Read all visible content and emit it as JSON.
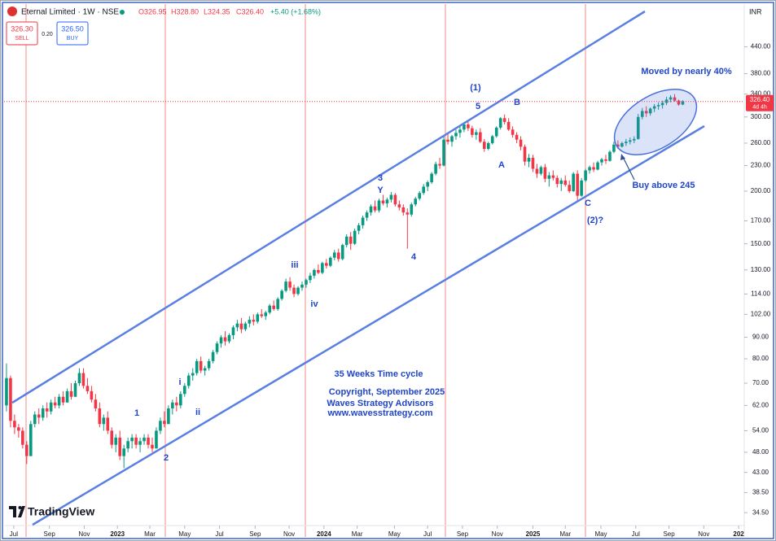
{
  "header": {
    "symbol": "Eternal Limited · 1W · NSE",
    "open": "O326.95",
    "high": "H328.80",
    "low": "L324.35",
    "close": "C326.40",
    "change": "+5.40 (+1.68%)",
    "currency": "INR"
  },
  "trade": {
    "sell_price": "326.30",
    "sell_label": "SELL",
    "spread": "0.20",
    "buy_price": "326.50",
    "buy_label": "BUY"
  },
  "branding": "TradingView",
  "chart_data": {
    "type": "candlestick",
    "log_scale": true,
    "grid": false,
    "up_color": "#089981",
    "down_color": "#f23645",
    "xlim": [
      -1.6,
      184.4
    ],
    "ylim": [
      32.3,
      556
    ],
    "xticks": [
      {
        "value": 1.8,
        "label": "Jul"
      },
      {
        "value": 10.6,
        "label": "Sep"
      },
      {
        "value": 19.2,
        "label": "Nov"
      },
      {
        "value": 27.4,
        "label": "2023"
      },
      {
        "value": 35.4,
        "label": "Mar"
      },
      {
        "value": 44,
        "label": "May"
      },
      {
        "value": 52.6,
        "label": "Jul"
      },
      {
        "value": 61.4,
        "label": "Sep"
      },
      {
        "value": 69.8,
        "label": "Nov"
      },
      {
        "value": 78.4,
        "label": "2024"
      },
      {
        "value": 86.6,
        "label": "Mar"
      },
      {
        "value": 95.8,
        "label": "May"
      },
      {
        "value": 104,
        "label": "Jul"
      },
      {
        "value": 112.6,
        "label": "Sep"
      },
      {
        "value": 121.2,
        "label": "Nov"
      },
      {
        "value": 130,
        "label": "2025"
      },
      {
        "value": 138,
        "label": "Mar"
      },
      {
        "value": 146.8,
        "label": "May"
      },
      {
        "value": 155.4,
        "label": "Jul"
      },
      {
        "value": 163.6,
        "label": "Sep"
      },
      {
        "value": 172.2,
        "label": "Nov"
      },
      {
        "value": 180.8,
        "label": "202"
      }
    ],
    "yticks": [
      {
        "value": 34.5,
        "label": "34.50"
      },
      {
        "value": 38.5,
        "label": "38.50"
      },
      {
        "value": 43,
        "label": "43.00"
      },
      {
        "value": 48,
        "label": "48.00"
      },
      {
        "value": 54,
        "label": "54.00"
      },
      {
        "value": 62,
        "label": "62.00"
      },
      {
        "value": 70,
        "label": "70.00"
      },
      {
        "value": 80,
        "label": "80.00"
      },
      {
        "value": 90,
        "label": "90.00"
      },
      {
        "value": 102,
        "label": "102.00"
      },
      {
        "value": 114,
        "label": "114.00"
      },
      {
        "value": 130,
        "label": "130.00"
      },
      {
        "value": 150,
        "label": "150.00"
      },
      {
        "value": 170,
        "label": "170.00"
      },
      {
        "value": 200,
        "label": "200.00"
      },
      {
        "value": 230,
        "label": "230.00"
      },
      {
        "value": 260,
        "label": "260.00"
      },
      {
        "value": 300,
        "label": "300.00"
      },
      {
        "value": 340,
        "label": "340.00"
      },
      {
        "value": 380,
        "label": "380.00"
      },
      {
        "value": 440,
        "label": "440.00"
      }
    ],
    "last_price": {
      "value": 326.4,
      "label": "326.40"
    },
    "countdown": "4d 4h",
    "annotations": [
      "(1)",
      "5",
      "B",
      "A",
      "3",
      "Y",
      "4",
      "iii",
      "iv",
      "i",
      "ii",
      "1",
      "2",
      "C",
      "(2)?",
      "Moved by nearly 40%",
      "Buy above 245",
      "35 Weeks Time cycle",
      "Copyright, September 2025",
      "Waves Strategy Advisors",
      "www.wavesstrategy.com"
    ],
    "candles": [
      [
        62,
        78,
        60,
        72
      ],
      [
        72,
        73,
        55,
        57
      ],
      [
        57,
        59,
        53,
        55
      ],
      [
        55,
        56,
        52,
        54
      ],
      [
        54,
        55,
        49,
        50
      ],
      [
        50,
        51,
        45,
        47
      ],
      [
        47,
        57,
        47,
        56
      ],
      [
        56,
        60,
        55,
        59
      ],
      [
        59,
        61,
        56,
        58
      ],
      [
        58,
        62,
        57,
        61
      ],
      [
        61,
        63,
        58,
        60
      ],
      [
        60,
        64,
        59,
        63
      ],
      [
        63,
        65,
        61,
        62
      ],
      [
        62,
        66,
        61,
        65
      ],
      [
        65,
        67,
        62,
        63
      ],
      [
        63,
        68,
        63,
        67
      ],
      [
        67,
        70,
        64,
        65
      ],
      [
        65,
        71,
        65,
        70
      ],
      [
        70,
        76,
        69,
        74
      ],
      [
        74,
        76,
        68,
        69
      ],
      [
        69,
        72,
        66,
        67
      ],
      [
        67,
        69,
        63,
        64
      ],
      [
        64,
        66,
        60,
        61
      ],
      [
        61,
        63,
        55,
        56
      ],
      [
        56,
        59,
        54,
        58
      ],
      [
        58,
        60,
        53,
        54
      ],
      [
        54,
        55,
        49,
        50
      ],
      [
        50,
        53,
        48,
        52
      ],
      [
        52,
        54,
        46,
        47
      ],
      [
        47,
        50,
        44,
        49
      ],
      [
        49,
        52,
        48,
        51
      ],
      [
        51,
        53,
        49,
        52
      ],
      [
        52,
        53,
        49,
        50
      ],
      [
        50,
        52,
        48,
        51
      ],
      [
        51,
        53,
        50,
        52
      ],
      [
        52,
        53,
        49,
        50
      ],
      [
        50,
        52,
        48,
        49
      ],
      [
        49,
        55,
        49,
        54
      ],
      [
        54,
        58,
        53,
        57
      ],
      [
        57,
        60,
        55,
        56
      ],
      [
        56,
        62,
        56,
        61
      ],
      [
        61,
        64,
        59,
        63
      ],
      [
        63,
        65,
        60,
        62
      ],
      [
        62,
        67,
        61,
        66
      ],
      [
        66,
        70,
        65,
        69
      ],
      [
        69,
        74,
        68,
        73
      ],
      [
        73,
        76,
        71,
        74
      ],
      [
        74,
        80,
        73,
        79
      ],
      [
        79,
        81,
        74,
        75
      ],
      [
        75,
        77,
        73,
        76
      ],
      [
        76,
        80,
        75,
        79
      ],
      [
        79,
        84,
        78,
        83
      ],
      [
        83,
        88,
        82,
        87
      ],
      [
        87,
        91,
        85,
        90
      ],
      [
        90,
        93,
        86,
        88
      ],
      [
        88,
        92,
        87,
        91
      ],
      [
        91,
        96,
        89,
        95
      ],
      [
        95,
        99,
        93,
        97
      ],
      [
        97,
        100,
        92,
        94
      ],
      [
        94,
        98,
        93,
        97
      ],
      [
        97,
        101,
        95,
        99
      ],
      [
        99,
        102,
        96,
        98
      ],
      [
        98,
        103,
        97,
        102
      ],
      [
        102,
        105,
        100,
        101
      ],
      [
        101,
        104,
        99,
        103
      ],
      [
        103,
        108,
        102,
        107
      ],
      [
        107,
        110,
        104,
        105
      ],
      [
        105,
        112,
        104,
        111
      ],
      [
        111,
        117,
        110,
        116
      ],
      [
        116,
        124,
        115,
        122
      ],
      [
        122,
        125,
        116,
        118
      ],
      [
        118,
        120,
        112,
        114
      ],
      [
        114,
        119,
        113,
        118
      ],
      [
        118,
        122,
        116,
        120
      ],
      [
        120,
        124,
        118,
        123
      ],
      [
        123,
        128,
        121,
        126
      ],
      [
        126,
        131,
        124,
        130
      ],
      [
        130,
        134,
        127,
        128
      ],
      [
        128,
        136,
        127,
        135
      ],
      [
        135,
        138,
        131,
        133
      ],
      [
        133,
        140,
        132,
        139
      ],
      [
        139,
        145,
        137,
        143
      ],
      [
        143,
        146,
        136,
        138
      ],
      [
        138,
        150,
        137,
        149
      ],
      [
        149,
        158,
        147,
        156
      ],
      [
        156,
        160,
        145,
        150
      ],
      [
        150,
        163,
        149,
        161
      ],
      [
        161,
        168,
        158,
        166
      ],
      [
        166,
        175,
        163,
        173
      ],
      [
        173,
        180,
        170,
        178
      ],
      [
        178,
        186,
        175,
        184
      ],
      [
        184,
        190,
        178,
        180
      ],
      [
        180,
        192,
        178,
        190
      ],
      [
        190,
        196,
        185,
        187
      ],
      [
        187,
        193,
        183,
        191
      ],
      [
        191,
        199,
        188,
        196
      ],
      [
        196,
        198,
        184,
        186
      ],
      [
        186,
        190,
        180,
        183
      ],
      [
        183,
        186,
        175,
        178
      ],
      [
        178,
        182,
        146,
        176
      ],
      [
        176,
        188,
        174,
        186
      ],
      [
        186,
        194,
        184,
        192
      ],
      [
        192,
        200,
        190,
        198
      ],
      [
        198,
        208,
        196,
        205
      ],
      [
        205,
        212,
        200,
        210
      ],
      [
        210,
        222,
        208,
        220
      ],
      [
        220,
        235,
        218,
        232
      ],
      [
        232,
        240,
        226,
        230
      ],
      [
        230,
        270,
        229,
        265
      ],
      [
        265,
        275,
        258,
        262
      ],
      [
        262,
        272,
        255,
        270
      ],
      [
        270,
        280,
        265,
        275
      ],
      [
        275,
        285,
        268,
        280
      ],
      [
        280,
        292,
        276,
        288
      ],
      [
        288,
        295,
        278,
        282
      ],
      [
        282,
        286,
        268,
        272
      ],
      [
        272,
        280,
        265,
        276
      ],
      [
        276,
        282,
        260,
        262
      ],
      [
        262,
        266,
        248,
        252
      ],
      [
        252,
        262,
        250,
        260
      ],
      [
        260,
        272,
        258,
        270
      ],
      [
        270,
        285,
        268,
        283
      ],
      [
        283,
        300,
        280,
        298
      ],
      [
        298,
        304,
        288,
        292
      ],
      [
        292,
        298,
        278,
        280
      ],
      [
        280,
        285,
        268,
        272
      ],
      [
        272,
        276,
        260,
        265
      ],
      [
        265,
        270,
        250,
        255
      ],
      [
        255,
        258,
        230,
        235
      ],
      [
        235,
        245,
        228,
        240
      ],
      [
        240,
        244,
        222,
        226
      ],
      [
        226,
        232,
        215,
        220
      ],
      [
        220,
        230,
        218,
        228
      ],
      [
        228,
        232,
        210,
        214
      ],
      [
        214,
        222,
        205,
        218
      ],
      [
        218,
        224,
        212,
        215
      ],
      [
        215,
        218,
        204,
        208
      ],
      [
        208,
        215,
        200,
        212
      ],
      [
        212,
        218,
        205,
        207
      ],
      [
        207,
        212,
        198,
        200
      ],
      [
        200,
        222,
        199,
        220
      ],
      [
        220,
        224,
        190,
        195
      ],
      [
        195,
        215,
        194,
        212
      ],
      [
        212,
        226,
        210,
        224
      ],
      [
        224,
        230,
        220,
        228
      ],
      [
        228,
        234,
        222,
        225
      ],
      [
        225,
        236,
        224,
        234
      ],
      [
        234,
        240,
        230,
        238
      ],
      [
        238,
        244,
        232,
        236
      ],
      [
        236,
        250,
        235,
        248
      ],
      [
        248,
        262,
        246,
        258
      ],
      [
        258,
        264,
        252,
        255
      ],
      [
        255,
        262,
        254,
        260
      ],
      [
        260,
        266,
        256,
        262
      ],
      [
        262,
        268,
        258,
        264
      ],
      [
        264,
        270,
        260,
        266
      ],
      [
        266,
        305,
        265,
        300
      ],
      [
        300,
        315,
        296,
        310
      ],
      [
        310,
        318,
        300,
        306
      ],
      [
        306,
        316,
        302,
        314
      ],
      [
        314,
        322,
        308,
        318
      ],
      [
        318,
        325,
        312,
        320
      ],
      [
        320,
        328,
        314,
        324
      ],
      [
        324,
        335,
        320,
        330
      ],
      [
        330,
        338,
        325,
        334
      ],
      [
        334,
        340,
        326,
        328
      ],
      [
        328,
        330,
        319,
        321
      ],
      [
        321,
        328.8,
        320,
        326.4
      ]
    ]
  }
}
